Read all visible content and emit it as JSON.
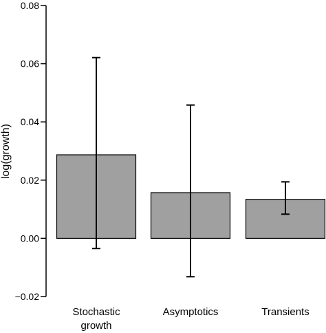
{
  "chart_data": {
    "type": "bar",
    "title": "",
    "xlabel": "",
    "ylabel": "log(growth)",
    "ylim": [
      -0.02,
      0.08
    ],
    "yticks": [
      -0.02,
      0.0,
      0.02,
      0.04,
      0.06,
      0.08
    ],
    "ytick_labels": [
      "−0.02",
      "0.00",
      "0.02",
      "0.04",
      "0.06",
      "0.08"
    ],
    "categories": [
      {
        "lines": [
          "Stochastic",
          "growth"
        ]
      },
      {
        "lines": [
          "Asymptotics"
        ]
      },
      {
        "lines": [
          "Transients"
        ]
      }
    ],
    "values": [
      0.0287,
      0.0157,
      0.0134
    ],
    "error_low": [
      -0.0035,
      -0.0132,
      0.0083
    ],
    "error_high": [
      0.0621,
      0.0458,
      0.0194
    ],
    "bar_color": "#a0a0a0",
    "grid": false,
    "legend": "none"
  }
}
